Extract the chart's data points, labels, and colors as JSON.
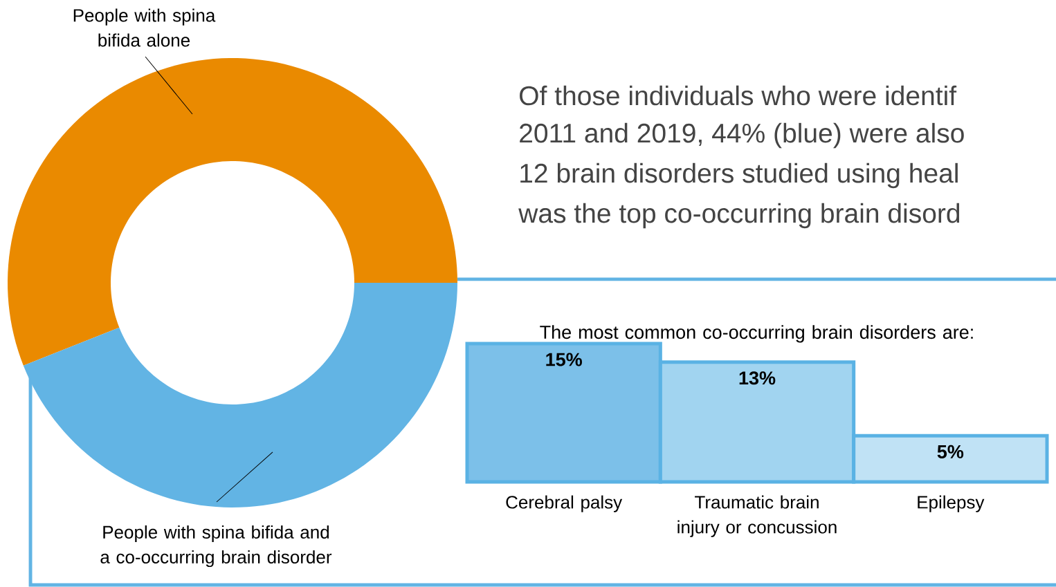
{
  "chart_data": [
    {
      "type": "donut",
      "categories": [
        "People with spina bifida alone",
        "People with spina bifida and a co-occurring brain disorder"
      ],
      "values": [
        56,
        44
      ],
      "colors": [
        "#ea8a00",
        "#62b4e4"
      ],
      "annotations": [
        "Of those individuals who were identif",
        "2011 and 2019, 44% (blue) were also",
        "12 brain disorders studied using heal",
        "was the top co-occurring brain disord"
      ]
    },
    {
      "type": "bar",
      "title": "The most common co-occurring brain disorders are:",
      "categories": [
        "Cerebral palsy",
        "Traumatic brain injury or concussion",
        "Epilepsy"
      ],
      "values": [
        15,
        13,
        5
      ],
      "colors": [
        "#7cc0e9",
        "#a1d4f0",
        "#c0e2f5"
      ],
      "value_labels": [
        "15%",
        "13%",
        "5%"
      ]
    }
  ]
}
